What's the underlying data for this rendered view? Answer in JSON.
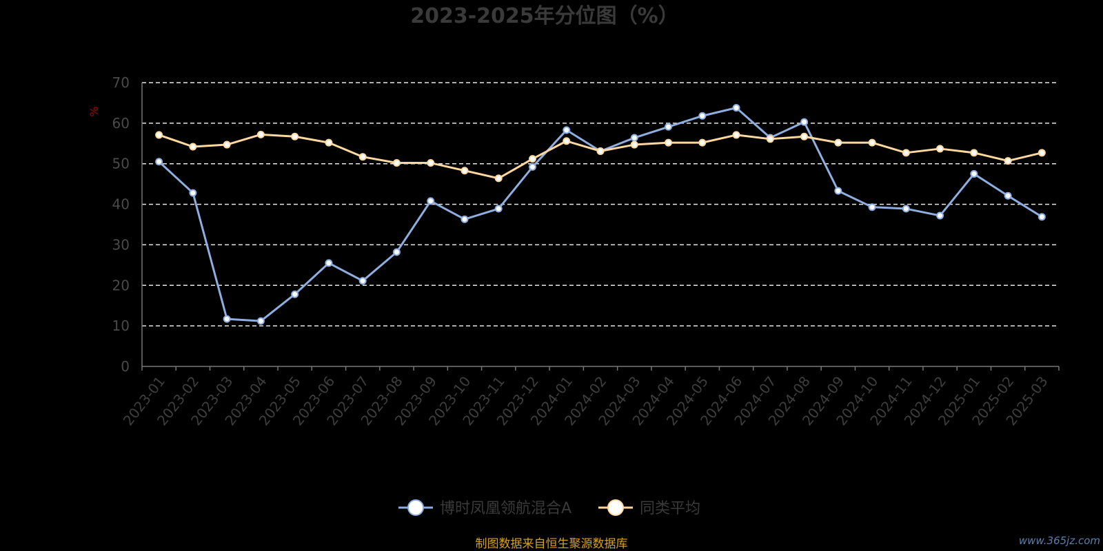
{
  "chart_data": {
    "type": "line",
    "title": "2023-2025年分位图（%）",
    "ylabel": "%",
    "xlabel": "",
    "ylim": [
      0,
      70
    ],
    "yticks": [
      0,
      10,
      20,
      30,
      40,
      50,
      60,
      70
    ],
    "grid": true,
    "legend_position": "bottom-center",
    "categories": [
      "2023-01",
      "2023-02",
      "2023-03",
      "2023-04",
      "2023-05",
      "2023-06",
      "2023-07",
      "2023-08",
      "2023-09",
      "2023-10",
      "2023-11",
      "2023-12",
      "2024-01",
      "2024-02",
      "2024-03",
      "2024-04",
      "2024-05",
      "2024-06",
      "2024-07",
      "2024-08",
      "2024-09",
      "2024-10",
      "2024-11",
      "2024-12",
      "2025-01",
      "2025-02",
      "2025-03"
    ],
    "series": [
      {
        "name": "博时凤凰领航混合A",
        "color": "#8eaee0",
        "values": [
          50.5,
          42.8,
          11.7,
          11.2,
          17.8,
          25.5,
          21.1,
          28.2,
          40.8,
          36.3,
          38.9,
          49.2,
          58.3,
          53.1,
          56.4,
          59.1,
          61.8,
          63.8,
          56.4,
          60.3,
          43.3,
          39.3,
          38.9,
          37.2,
          47.5,
          42.1,
          36.9
        ]
      },
      {
        "name": "同类平均",
        "color": "#ffd8a0",
        "values": [
          57.1,
          54.2,
          54.7,
          57.2,
          56.7,
          55.2,
          51.7,
          50.2,
          50.2,
          48.3,
          46.4,
          51.2,
          55.6,
          53.1,
          54.7,
          55.2,
          55.2,
          57.1,
          56.1,
          56.7,
          55.2,
          55.2,
          52.7,
          53.7,
          52.7,
          50.7,
          52.7
        ]
      }
    ]
  },
  "source_note": "制图数据来自恒生聚源数据库",
  "watermark": "www.365jz.com"
}
